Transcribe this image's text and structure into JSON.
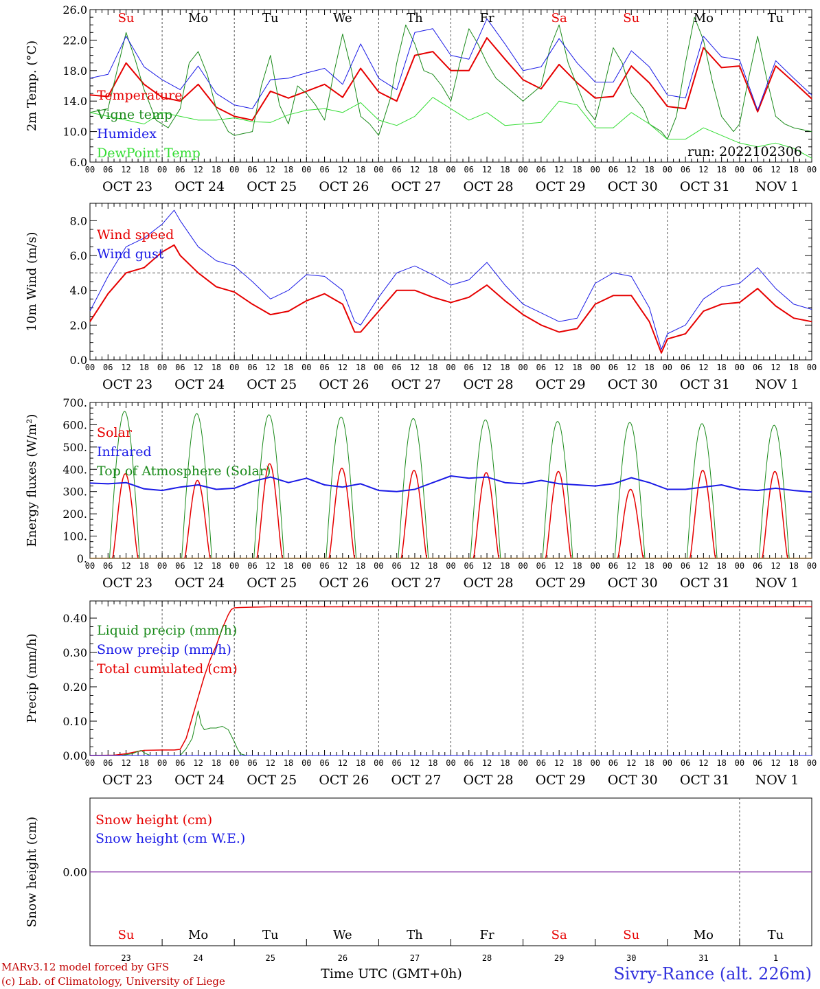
{
  "colors": {
    "temperature": "#e60000",
    "vigne": "#1a8a1a",
    "humidex": "#1a1ae6",
    "dewpoint": "#33dd33",
    "sunday": "#e60000",
    "weekday": "#000000"
  },
  "days": [
    {
      "dow": "Su",
      "date": "OCT 23",
      "num": "23",
      "sunday": true
    },
    {
      "dow": "Mo",
      "date": "OCT 24",
      "num": "24",
      "sunday": false
    },
    {
      "dow": "Tu",
      "date": "OCT 25",
      "num": "25",
      "sunday": false
    },
    {
      "dow": "We",
      "date": "OCT 26",
      "num": "26",
      "sunday": false
    },
    {
      "dow": "Th",
      "date": "OCT 27",
      "num": "27",
      "sunday": false
    },
    {
      "dow": "Fr",
      "date": "OCT 28",
      "num": "28",
      "sunday": false
    },
    {
      "dow": "Sa",
      "date": "OCT 29",
      "num": "29",
      "sunday": true
    },
    {
      "dow": "Su",
      "date": "OCT 30",
      "num": "30",
      "sunday": true
    },
    {
      "dow": "Mo",
      "date": "OCT 31",
      "num": "31",
      "sunday": false
    },
    {
      "dow": "Tu",
      "date": "NOV  1",
      "num": "1",
      "sunday": false
    }
  ],
  "hour_labels": [
    "00",
    "06",
    "12",
    "18"
  ],
  "run_label": "run: 2022102306",
  "footer": {
    "model": "MARv3.12 model forced by GFS",
    "credit": "(c) Lab. of Climatology, University of Liege",
    "xaxis": "Time UTC (GMT+0h)",
    "location": "Sivry-Rance (alt. 226m)"
  },
  "chart_data": [
    {
      "type": "line",
      "ylabel": "2m Temp. (°C)",
      "ylim": [
        6.0,
        26.0
      ],
      "yticks": [
        "6.0",
        "10.0",
        "14.0",
        "18.0",
        "22.0",
        "26.0"
      ],
      "x_unit": "hours since 2022-10-23 00 UTC",
      "legend": [
        "Temperature",
        "Vigne temp",
        "Humidex",
        "DewPoint Temp"
      ],
      "series": [
        {
          "name": "Temperature",
          "color": "temperature",
          "width": 2,
          "x": [
            0,
            6,
            12,
            18,
            24,
            30,
            36,
            42,
            48,
            54,
            60,
            66,
            72,
            78,
            84,
            90,
            96,
            102,
            108,
            114,
            120,
            126,
            132,
            138,
            144,
            150,
            156,
            162,
            168,
            174,
            180,
            186,
            192,
            198,
            204,
            210,
            216,
            222,
            228,
            234,
            240
          ],
          "y": [
            14.8,
            14.6,
            19.0,
            16.2,
            14.5,
            14.0,
            16.2,
            13.2,
            12.0,
            11.5,
            15.3,
            14.4,
            15.3,
            16.2,
            14.5,
            18.3,
            15.2,
            14.0,
            20.0,
            20.5,
            18.0,
            18.0,
            22.3,
            19.5,
            16.8,
            15.6,
            18.8,
            16.4,
            14.4,
            14.6,
            18.6,
            16.4,
            13.3,
            13.0,
            21.0,
            18.4,
            18.6,
            12.6,
            18.6,
            16.5,
            14.3
          ]
        },
        {
          "name": "Vigne temp",
          "color": "vigne",
          "width": 1,
          "x": [
            0,
            6,
            9,
            12,
            15,
            18,
            22,
            26,
            30,
            33,
            36,
            39,
            42,
            46,
            48,
            54,
            57,
            60,
            63,
            66,
            69,
            72,
            75,
            78,
            81,
            84,
            87,
            90,
            93,
            96,
            100,
            102,
            105,
            108,
            111,
            114,
            117,
            120,
            123,
            126,
            129,
            132,
            135,
            138,
            144,
            150,
            153,
            156,
            159,
            162,
            165,
            168,
            171,
            174,
            177,
            180,
            184,
            186,
            190,
            192,
            195,
            198,
            201,
            204,
            207,
            210,
            214,
            216,
            219,
            222,
            225,
            228,
            231,
            234,
            240
          ],
          "y": [
            12.5,
            13.0,
            18.0,
            23.0,
            19.5,
            15.5,
            11.5,
            10.5,
            13.0,
            19.0,
            20.5,
            17.5,
            13.0,
            10.0,
            9.5,
            10.0,
            16.0,
            20.0,
            13.5,
            11.0,
            16.0,
            15.0,
            13.5,
            11.5,
            17.5,
            22.8,
            18.0,
            12.0,
            11.0,
            9.5,
            14.5,
            19.0,
            24.0,
            21.5,
            18.0,
            17.5,
            16.0,
            14.0,
            19.0,
            23.5,
            21.5,
            19.0,
            17.0,
            16.0,
            14.0,
            16.0,
            21.0,
            24.0,
            19.0,
            16.0,
            13.0,
            11.5,
            16.0,
            21.0,
            19.0,
            15.0,
            13.0,
            11.0,
            10.0,
            9.0,
            12.0,
            19.0,
            25.0,
            22.0,
            16.5,
            12.0,
            10.0,
            11.0,
            17.0,
            22.5,
            17.0,
            12.0,
            11.0,
            10.5,
            10.0
          ]
        },
        {
          "name": "Humidex",
          "color": "humidex",
          "width": 1,
          "x": [
            0,
            6,
            12,
            18,
            24,
            30,
            36,
            42,
            48,
            54,
            60,
            66,
            72,
            78,
            84,
            90,
            96,
            102,
            108,
            114,
            120,
            126,
            132,
            138,
            144,
            150,
            156,
            162,
            168,
            174,
            180,
            186,
            192,
            198,
            204,
            210,
            216,
            222,
            228,
            234,
            240
          ],
          "y": [
            17.0,
            17.5,
            22.5,
            18.5,
            16.8,
            15.5,
            18.6,
            15.0,
            13.5,
            13.0,
            16.8,
            17.0,
            17.7,
            18.3,
            16.2,
            21.5,
            17.0,
            15.5,
            23.0,
            23.5,
            20.0,
            19.5,
            24.8,
            21.5,
            18.0,
            18.5,
            22.2,
            19.0,
            16.5,
            16.5,
            20.6,
            18.5,
            14.8,
            14.4,
            22.5,
            19.8,
            19.4,
            12.8,
            19.3,
            17.0,
            14.8
          ]
        },
        {
          "name": "DewPoint Temp",
          "color": "dewpoint",
          "width": 1,
          "x": [
            0,
            6,
            12,
            18,
            24,
            30,
            36,
            42,
            48,
            54,
            60,
            66,
            72,
            78,
            84,
            90,
            96,
            102,
            108,
            114,
            120,
            126,
            132,
            138,
            144,
            150,
            156,
            162,
            168,
            174,
            180,
            186,
            192,
            198,
            204,
            210,
            216,
            222,
            228,
            234,
            240
          ],
          "y": [
            12.5,
            12.0,
            11.5,
            11.0,
            12.5,
            12.0,
            11.5,
            11.5,
            11.8,
            11.3,
            11.2,
            12.2,
            12.8,
            13.0,
            12.5,
            13.8,
            11.5,
            10.8,
            12.0,
            14.5,
            13.0,
            11.5,
            12.5,
            10.8,
            11.0,
            11.2,
            14.0,
            13.5,
            10.5,
            10.5,
            12.5,
            11.0,
            9.0,
            9.0,
            10.5,
            9.5,
            8.5,
            8.0,
            8.5,
            7.8,
            6.5
          ]
        }
      ]
    },
    {
      "type": "line",
      "ylabel": "10m Wind (m/s)",
      "ylim": [
        0.0,
        9.0
      ],
      "yticks": [
        "0.0",
        "2.0",
        "4.0",
        "6.0",
        "8.0"
      ],
      "reference_line": 5.0,
      "legend": [
        "Wind speed",
        "Wind gust"
      ],
      "series": [
        {
          "name": "Wind speed",
          "color": "temperature",
          "width": 2,
          "x": [
            0,
            6,
            12,
            18,
            24,
            28,
            30,
            36,
            42,
            48,
            54,
            60,
            66,
            72,
            78,
            84,
            88,
            90,
            96,
            102,
            108,
            114,
            120,
            126,
            132,
            138,
            144,
            150,
            156,
            162,
            168,
            174,
            180,
            186,
            190,
            192,
            198,
            204,
            210,
            216,
            222,
            228,
            234,
            240
          ],
          "y": [
            2.2,
            3.8,
            5.0,
            5.3,
            6.2,
            6.6,
            6.0,
            5.0,
            4.2,
            3.9,
            3.2,
            2.6,
            2.8,
            3.4,
            3.8,
            3.2,
            1.6,
            1.6,
            2.8,
            4.0,
            4.0,
            3.6,
            3.3,
            3.6,
            4.3,
            3.4,
            2.6,
            2.0,
            1.6,
            1.8,
            3.2,
            3.7,
            3.7,
            2.2,
            0.4,
            1.2,
            1.5,
            2.8,
            3.2,
            3.3,
            4.1,
            3.1,
            2.4,
            2.2
          ]
        },
        {
          "name": "Wind gust",
          "color": "humidex",
          "width": 1,
          "x": [
            0,
            6,
            12,
            18,
            24,
            28,
            30,
            36,
            42,
            48,
            54,
            60,
            66,
            72,
            78,
            84,
            88,
            90,
            96,
            102,
            108,
            114,
            120,
            126,
            132,
            138,
            144,
            150,
            156,
            162,
            168,
            174,
            180,
            186,
            190,
            192,
            198,
            204,
            210,
            216,
            222,
            228,
            234,
            240
          ],
          "y": [
            2.8,
            4.8,
            6.5,
            7.0,
            7.8,
            8.6,
            8.0,
            6.5,
            5.7,
            5.4,
            4.5,
            3.5,
            4.0,
            4.9,
            4.8,
            4.0,
            2.2,
            2.0,
            3.6,
            5.0,
            5.4,
            4.9,
            4.3,
            4.6,
            5.6,
            4.3,
            3.2,
            2.7,
            2.2,
            2.4,
            4.4,
            5.0,
            4.8,
            3.0,
            0.6,
            1.5,
            2.0,
            3.5,
            4.2,
            4.4,
            5.3,
            4.1,
            3.2,
            2.9
          ]
        }
      ]
    },
    {
      "type": "line",
      "ylabel": "Energy fluxes (W/m²)",
      "ylim": [
        0,
        700
      ],
      "yticks": [
        "0.",
        "100.",
        "200.",
        "300.",
        "400.",
        "500.",
        "600.",
        "700."
      ],
      "legend": [
        "Solar",
        "Infrared",
        "Top of Atmosphere (Solar)"
      ],
      "solar_peaks": [
        380,
        350,
        425,
        405,
        395,
        385,
        390,
        310,
        395,
        390
      ],
      "toa_peaks": [
        660,
        650,
        645,
        635,
        628,
        622,
        615,
        610,
        605,
        598
      ],
      "series": [
        {
          "name": "Infrared",
          "color": "humidex",
          "width": 2,
          "x": [
            0,
            6,
            12,
            18,
            24,
            30,
            36,
            42,
            48,
            54,
            60,
            66,
            72,
            78,
            84,
            90,
            96,
            102,
            108,
            114,
            120,
            126,
            132,
            138,
            144,
            150,
            156,
            162,
            168,
            174,
            180,
            186,
            192,
            198,
            204,
            210,
            216,
            222,
            228,
            234,
            240
          ],
          "y": [
            338,
            335,
            340,
            312,
            305,
            320,
            330,
            310,
            315,
            345,
            365,
            340,
            360,
            330,
            320,
            335,
            305,
            300,
            310,
            340,
            370,
            360,
            365,
            340,
            335,
            350,
            335,
            330,
            325,
            335,
            362,
            340,
            310,
            310,
            320,
            330,
            310,
            305,
            315,
            305,
            298
          ]
        }
      ]
    },
    {
      "type": "line",
      "ylabel": "Precip (mm/h)",
      "ylim": [
        0.0,
        0.45
      ],
      "yticks": [
        "0.00",
        "0.10",
        "0.20",
        "0.30",
        "0.40"
      ],
      "legend": [
        "Liquid precip (mm/h)",
        "Snow precip (mm/h)",
        "Total cumulated (cm)"
      ],
      "series": [
        {
          "name": "Total cumulated (cm)",
          "color": "temperature",
          "width": 1.5,
          "x": [
            0,
            8,
            12,
            16,
            18,
            24,
            28,
            30,
            32,
            34,
            36,
            38,
            40,
            42,
            44,
            46,
            47,
            48,
            50,
            54,
            60,
            72,
            96,
            120,
            144,
            168,
            192,
            216,
            240
          ],
          "y": [
            0.0,
            0.001,
            0.005,
            0.012,
            0.015,
            0.016,
            0.016,
            0.018,
            0.05,
            0.11,
            0.17,
            0.23,
            0.28,
            0.32,
            0.37,
            0.41,
            0.425,
            0.43,
            0.431,
            0.432,
            0.433,
            0.433,
            0.433,
            0.433,
            0.433,
            0.433,
            0.433,
            0.433,
            0.433
          ]
        },
        {
          "name": "Liquid precip (mm/h)",
          "color": "vigne",
          "width": 1,
          "x": [
            0,
            10,
            14,
            16,
            17,
            18,
            20,
            30,
            32,
            34,
            35,
            36,
            37,
            38,
            40,
            42,
            44,
            46,
            48,
            49,
            50,
            52,
            60,
            240
          ],
          "y": [
            0,
            0,
            0.005,
            0.012,
            0.015,
            0.008,
            0,
            0,
            0.02,
            0.05,
            0.09,
            0.13,
            0.09,
            0.075,
            0.08,
            0.08,
            0.085,
            0.075,
            0.04,
            0.02,
            0.005,
            0,
            0,
            0
          ]
        },
        {
          "name": "Snow precip (mm/h)",
          "color": "humidex",
          "width": 1,
          "x": [
            0,
            240
          ],
          "y": [
            0,
            0
          ]
        }
      ]
    },
    {
      "type": "line",
      "ylabel": "Snow height (cm)",
      "yticks": [
        "0.00"
      ],
      "legend": [
        "Snow height (cm)",
        "Snow height (cm W.E.)"
      ],
      "series": [
        {
          "name": "Snow height (cm)",
          "color": "temperature",
          "width": 1,
          "x": [
            0,
            240
          ],
          "y": [
            0,
            0
          ]
        },
        {
          "name": "Snow height (cm W.E.)",
          "color": "humidex",
          "width": 1,
          "x": [
            0,
            240
          ],
          "y": [
            0,
            0
          ]
        }
      ]
    }
  ]
}
